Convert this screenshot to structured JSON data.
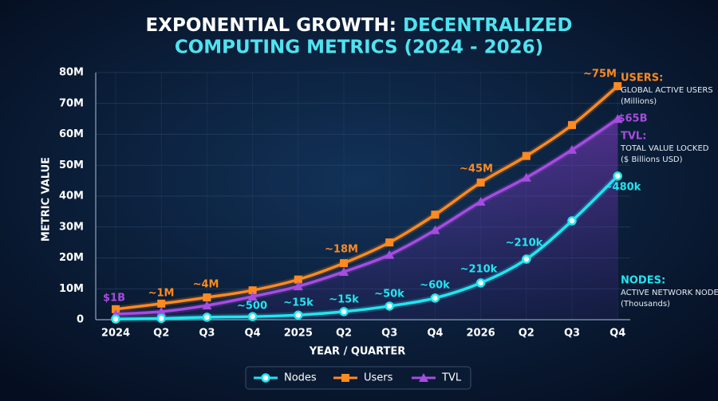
{
  "chart_data": {
    "type": "line",
    "title": [
      "EXPONENTIAL GROWTH:",
      "DECENTRALIZED",
      "COMPUTING METRICS (2024 - 2026)"
    ],
    "x_label": "YEAR / QUARTER",
    "y_label": "METRIC VALUE",
    "categories": [
      "2024",
      "Q2",
      "Q3",
      "Q4",
      "2025",
      "Q2",
      "Q3",
      "Q4",
      "2026",
      "Q2",
      "Q3",
      "Q4"
    ],
    "series": [
      {
        "name": "Nodes",
        "color": "#22e5f0",
        "marker": "circle",
        "values": [
          0.2,
          0.4,
          0.8,
          1.0,
          1.5,
          2.6,
          4.4,
          7.0,
          11.9,
          19.6,
          32,
          46.5
        ]
      },
      {
        "name": "Users",
        "color": "#ff8a1f",
        "marker": "square",
        "values": [
          3.4,
          5.2,
          7.2,
          9.5,
          13,
          18.3,
          25,
          34,
          44.4,
          53,
          63,
          75.6
        ]
      },
      {
        "name": "TVL",
        "color": "#a64ce0",
        "marker": "triangle",
        "values": [
          1.8,
          2.6,
          4.6,
          7.5,
          10.8,
          15.5,
          21,
          29,
          38.2,
          46,
          55,
          65
        ]
      }
    ],
    "ylim": [
      0,
      80
    ],
    "yticks": [
      0,
      {
        "value": 10,
        "label": "10M"
      },
      {
        "value": 20,
        "label": "20M"
      },
      {
        "value": 30,
        "label": "30M"
      },
      {
        "value": 40,
        "label": "40M"
      },
      {
        "value": 50,
        "label": "50M"
      },
      {
        "value": 60,
        "label": "60M"
      },
      {
        "value": 70,
        "label": "70M"
      },
      {
        "value": 80,
        "label": "80M"
      }
    ],
    "grid": true,
    "annotations": [
      "$1B",
      "~1M",
      "~4M",
      "~500",
      "~15k",
      "~15k",
      "~50k",
      "~60k",
      "~210k",
      "~210k",
      "~480k",
      "~18M",
      "~45M",
      "~75M",
      "$65B"
    ],
    "series_notes": [
      {
        "title": "USERS:",
        "lines": [
          "GLOBAL ACTIVE USERS",
          "(Millions)"
        ]
      },
      {
        "title": "TVL:",
        "lines": [
          "TOTAL VALUE LOCKED",
          "($ Billions USD)"
        ]
      },
      {
        "title": "NODES:",
        "lines": [
          "ACTIVE NETWORK NODES",
          "(Thousands)"
        ]
      }
    ]
  }
}
